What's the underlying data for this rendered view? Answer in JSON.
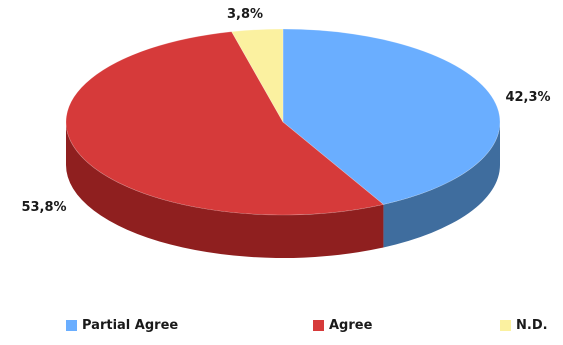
{
  "chart_data": {
    "type": "pie",
    "style": "3d",
    "title": "",
    "legend_position": "bottom",
    "series": [
      {
        "name": "Partial Agree",
        "value": 42.3,
        "label": "42,3%",
        "color": "#6aaeff"
      },
      {
        "name": "Agree",
        "value": 53.8,
        "label": "53,8%",
        "color": "#d63a3a"
      },
      {
        "name": "N.D.",
        "value": 3.8,
        "label": "3,8%",
        "color": "#fbf1a0"
      }
    ]
  }
}
